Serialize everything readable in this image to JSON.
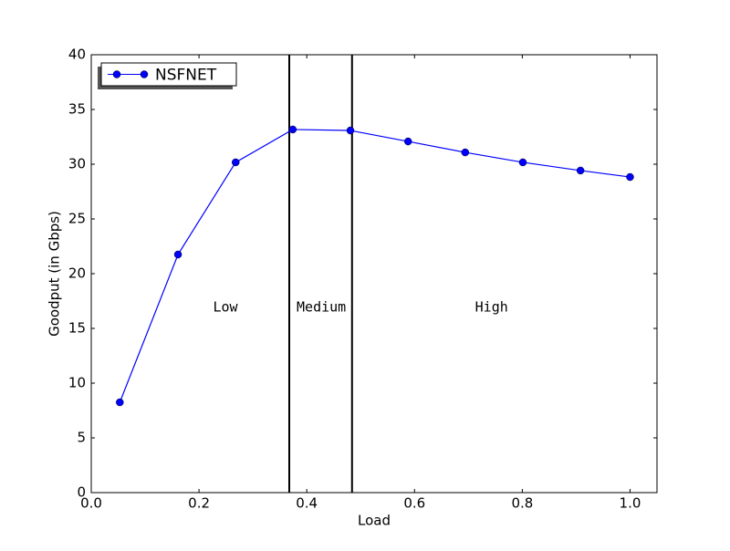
{
  "chart_data": {
    "type": "line",
    "x_label": "Load",
    "y_label": "Goodput (in Gbps)",
    "x": [
      0.053,
      0.161,
      0.268,
      0.374,
      0.481,
      0.588,
      0.694,
      0.801,
      0.908,
      1.0
    ],
    "series": [
      {
        "name": "NSFNET",
        "color": "#0000ff",
        "values": [
          8.25,
          21.75,
          30.17,
          33.17,
          33.08,
          32.08,
          31.08,
          30.17,
          29.42,
          28.83
        ]
      }
    ],
    "xlim": [
      0,
      1.05
    ],
    "ylim": [
      0,
      40
    ],
    "xticks": [
      {
        "value": 0,
        "label": "0.0"
      },
      0.2,
      0.4,
      0.6,
      0.8,
      {
        "value": 1,
        "label": "1.0"
      }
    ],
    "yticks": [
      0,
      5,
      10,
      15,
      20,
      25,
      30,
      35,
      40
    ],
    "vlines": [
      0.3675,
      0.484
    ],
    "annotations": [
      {
        "text": "Low",
        "x": 0.249,
        "y": 16.9
      },
      {
        "text": "Medium",
        "x": 0.427,
        "y": 16.9
      },
      {
        "text": "High",
        "x": 0.743,
        "y": 16.9
      }
    ],
    "legend": "upper left",
    "grid": false
  }
}
